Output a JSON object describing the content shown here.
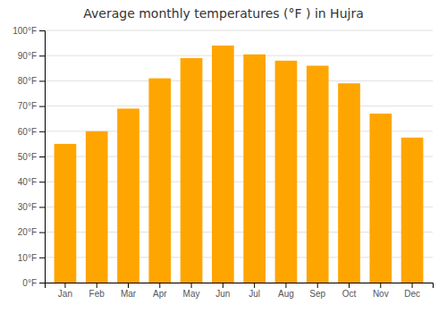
{
  "chart_data": {
    "type": "bar",
    "title": "Average monthly temperatures (°F ) in Hujra",
    "categories": [
      "Jan",
      "Feb",
      "Mar",
      "Apr",
      "May",
      "Jun",
      "Jul",
      "Aug",
      "Sep",
      "Oct",
      "Nov",
      "Dec"
    ],
    "values": [
      55,
      60,
      69,
      81,
      89,
      94,
      90.5,
      88,
      86,
      79,
      67,
      57.5
    ],
    "color": "#FFA500",
    "ylim": [
      0,
      100
    ],
    "yticks": [
      {
        "value": 0,
        "label": "0°F"
      },
      {
        "value": 10,
        "label": "10°F"
      },
      {
        "value": 20,
        "label": "20°F"
      },
      {
        "value": 30,
        "label": "30°F"
      },
      {
        "value": 40,
        "label": "40°F"
      },
      {
        "value": 50,
        "label": "50°F"
      },
      {
        "value": 60,
        "label": "60°F"
      },
      {
        "value": 70,
        "label": "70°F"
      },
      {
        "value": 80,
        "label": "80°F"
      },
      {
        "value": 90,
        "label": "90°F"
      },
      {
        "value": 100,
        "label": "100°F"
      }
    ],
    "grid": true
  }
}
